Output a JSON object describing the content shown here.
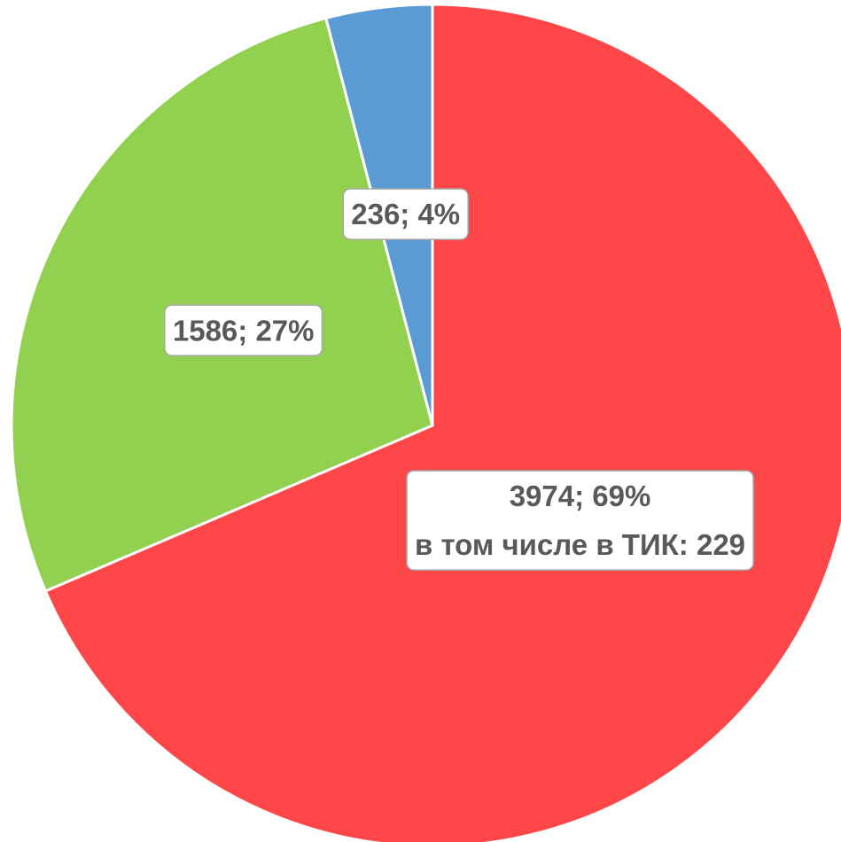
{
  "chart_data": {
    "type": "pie",
    "values": [
      3974,
      1586,
      236
    ],
    "value_labels": [
      "3974; 69%",
      "1586; 27%",
      "236; 4%"
    ],
    "colors": [
      "#ff4649",
      "#92d050",
      "#5b9bd5"
    ],
    "annotation": "в том числе в ТИК: 229"
  }
}
